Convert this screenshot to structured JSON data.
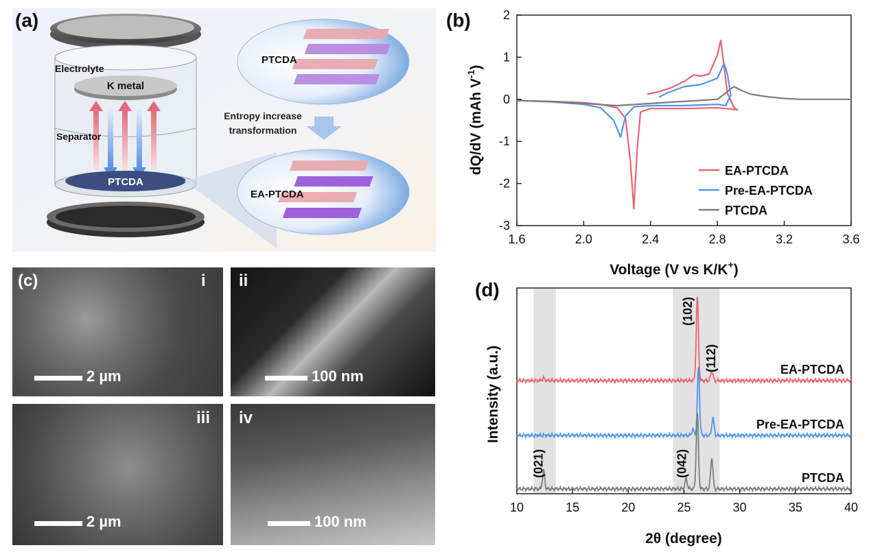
{
  "panel_a": {
    "label": "(a)",
    "electrolyte": "Electrolyte",
    "k_metal": "K metal",
    "separator": "Separator",
    "ptcda_disk": "PTCDA",
    "bubble_top": "PTCDA",
    "arrow_text_1": "Entropy increase",
    "arrow_text_2": "transformation",
    "bubble_bottom": "EA-PTCDA"
  },
  "panel_b": {
    "label": "(b)",
    "colors": {
      "ea": "#e8646e",
      "pre": "#4f95ee",
      "ptcda": "#7d7d7d"
    }
  },
  "panel_c": {
    "label": "(c)",
    "images": [
      {
        "roman": "i",
        "scale": "2 µm"
      },
      {
        "roman": "ii",
        "scale": "100 nm"
      },
      {
        "roman": "iii",
        "scale": "2 µm"
      },
      {
        "roman": "iv",
        "scale": "100 nm"
      }
    ]
  },
  "panel_d": {
    "label": "(d)",
    "peak_labels": [
      "(102)",
      "(112)",
      "(021)",
      "(042)"
    ]
  },
  "chart_data": [
    {
      "type": "line",
      "xlabel": "Voltage (V vs K/K",
      "xlabel_sup": "+",
      "xlabel_end": ")",
      "ylabel": "dQ/dV (mAh V",
      "ylabel_sup": "-1",
      "ylabel_end": ")",
      "xlim": [
        1.6,
        3.6
      ],
      "ylim": [
        -3,
        2
      ],
      "xticks": [
        "1.6",
        "2.0",
        "2.4",
        "2.8",
        "3.2",
        "3.6"
      ],
      "yticks": [
        "2",
        "1",
        "0",
        "-1",
        "-2",
        "-3"
      ],
      "legend_position": "bottom-right",
      "series": [
        {
          "name": "EA-PTCDA",
          "x": [
            1.6,
            1.8,
            2.0,
            2.1,
            2.2,
            2.25,
            2.28,
            2.3,
            2.32,
            2.34,
            2.4,
            2.6,
            2.8,
            2.92,
            2.9,
            2.86,
            2.82,
            2.8,
            2.75,
            2.7,
            2.66,
            2.6,
            2.52,
            2.45,
            2.38
          ],
          "y": [
            -0.03,
            -0.05,
            -0.08,
            -0.12,
            -0.2,
            -0.45,
            -1.5,
            -2.6,
            -1.2,
            -0.3,
            -0.22,
            -0.22,
            -0.2,
            -0.25,
            -0.2,
            0.15,
            1.4,
            1.05,
            0.6,
            0.55,
            0.58,
            0.42,
            0.27,
            0.18,
            0.12
          ]
        },
        {
          "name": "Pre-EA-PTCDA",
          "x": [
            1.6,
            1.8,
            2.0,
            2.1,
            2.18,
            2.22,
            2.25,
            2.3,
            2.4,
            2.6,
            2.8,
            2.85,
            2.88,
            2.86,
            2.84,
            2.8,
            2.7,
            2.6,
            2.5,
            2.45
          ],
          "y": [
            -0.03,
            -0.06,
            -0.12,
            -0.2,
            -0.5,
            -0.9,
            -0.4,
            -0.18,
            -0.15,
            -0.15,
            -0.12,
            -0.15,
            0.1,
            0.6,
            0.85,
            0.5,
            0.35,
            0.3,
            0.15,
            0.05
          ]
        },
        {
          "name": "PTCDA",
          "x": [
            1.6,
            1.8,
            2.0,
            2.2,
            2.4,
            2.6,
            2.8,
            2.85,
            2.88,
            2.9,
            2.95,
            3.0,
            3.1,
            3.2,
            3.3,
            3.6
          ],
          "y": [
            -0.03,
            -0.05,
            -0.1,
            -0.15,
            -0.1,
            -0.05,
            0.0,
            0.15,
            0.25,
            0.3,
            0.2,
            0.12,
            0.06,
            0.02,
            0.0,
            0.0
          ]
        }
      ]
    },
    {
      "type": "line",
      "xlabel": "2θ (degree)",
      "ylabel": "Intensity (a.u.)",
      "xlim": [
        10,
        40
      ],
      "xticks": [
        "10",
        "15",
        "20",
        "25",
        "30",
        "35",
        "40"
      ],
      "shaded_regions": [
        [
          11.5,
          13.5
        ],
        [
          24,
          28.2
        ]
      ],
      "series": [
        {
          "name": "EA-PTCDA",
          "offset": 2.0,
          "peaks": [
            [
              12.4,
              0.06
            ],
            [
              26.2,
              2.1
            ],
            [
              27.5,
              0.25
            ]
          ]
        },
        {
          "name": "Pre-EA-PTCDA",
          "offset": 1.0,
          "peaks": [
            [
              25.8,
              0.15
            ],
            [
              26.3,
              1.7
            ],
            [
              27.6,
              0.45
            ]
          ]
        },
        {
          "name": "PTCDA",
          "offset": 0.0,
          "peaks": [
            [
              12.4,
              0.45
            ],
            [
              25.2,
              0.25
            ],
            [
              26.2,
              1.9
            ],
            [
              27.5,
              0.8
            ]
          ]
        }
      ]
    }
  ]
}
